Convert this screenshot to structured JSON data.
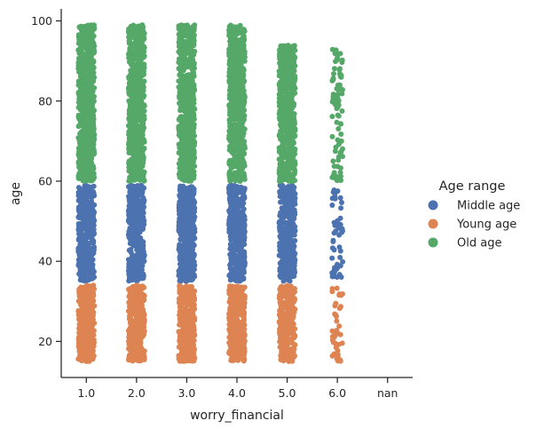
{
  "chart_data": {
    "type": "scatter",
    "xlabel": "worry_financial",
    "ylabel": "age",
    "categories": [
      "1.0",
      "2.0",
      "3.0",
      "4.0",
      "5.0",
      "6.0",
      "nan"
    ],
    "yticks": [
      20,
      40,
      60,
      80,
      100
    ],
    "ylim": [
      11,
      103
    ],
    "grid": false,
    "legend": {
      "title": "Age range",
      "placement": "right",
      "entries": [
        "Middle age",
        "Young age",
        "Old age"
      ]
    },
    "series": [
      {
        "name": "Middle age",
        "color": "#4c72b0",
        "ranges": [
          {
            "category": "1.0",
            "ymin": 35,
            "ymax": 59
          },
          {
            "category": "2.0",
            "ymin": 35,
            "ymax": 59
          },
          {
            "category": "3.0",
            "ymin": 35,
            "ymax": 59
          },
          {
            "category": "4.0",
            "ymin": 35,
            "ymax": 59
          },
          {
            "category": "5.0",
            "ymin": 35,
            "ymax": 59
          },
          {
            "category": "6.0",
            "ymin": 36,
            "ymax": 58
          }
        ]
      },
      {
        "name": "Young age",
        "color": "#dd8452",
        "ranges": [
          {
            "category": "1.0",
            "ymin": 15,
            "ymax": 34
          },
          {
            "category": "2.0",
            "ymin": 15,
            "ymax": 34
          },
          {
            "category": "3.0",
            "ymin": 15,
            "ymax": 34
          },
          {
            "category": "4.0",
            "ymin": 15,
            "ymax": 34
          },
          {
            "category": "5.0",
            "ymin": 15,
            "ymax": 34
          },
          {
            "category": "6.0",
            "ymin": 15,
            "ymax": 34
          }
        ]
      },
      {
        "name": "Old age",
        "color": "#55a868",
        "ranges": [
          {
            "category": "1.0",
            "ymin": 60,
            "ymax": 99
          },
          {
            "category": "2.0",
            "ymin": 60,
            "ymax": 99
          },
          {
            "category": "3.0",
            "ymin": 60,
            "ymax": 99
          },
          {
            "category": "4.0",
            "ymin": 60,
            "ymax": 99
          },
          {
            "category": "5.0",
            "ymin": 60,
            "ymax": 94
          },
          {
            "category": "6.0",
            "ymin": 60,
            "ymax": 93
          }
        ]
      }
    ]
  }
}
